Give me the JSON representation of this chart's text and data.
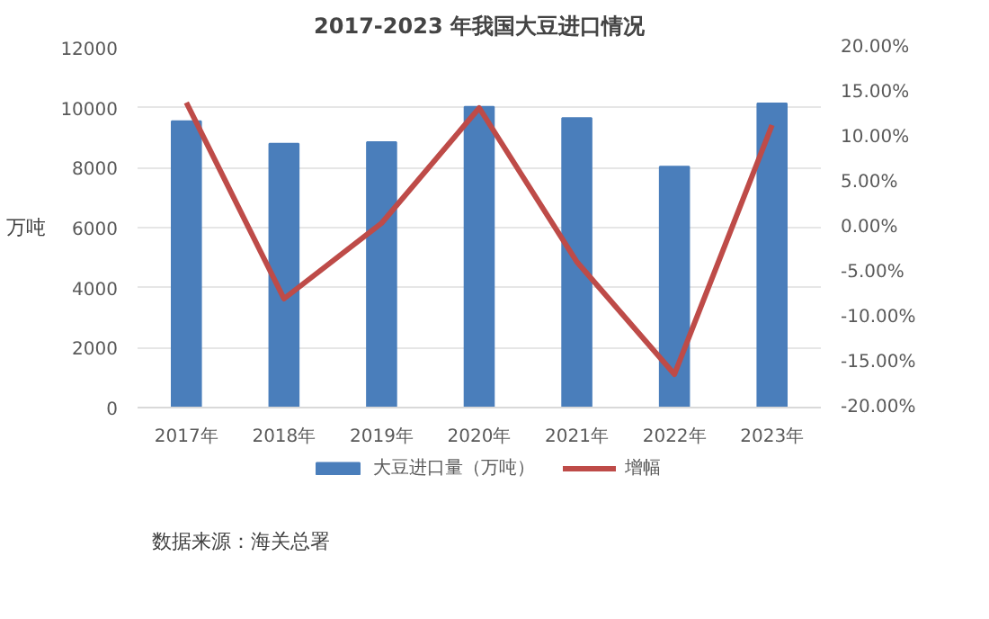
{
  "chart_data": {
    "type": "bar",
    "title": "2017-2023 年我国大豆进口情况",
    "ylabel": "万吨",
    "categories": [
      "2017年",
      "2018年",
      "2019年",
      "2020年",
      "2021年",
      "2022年",
      "2023年"
    ],
    "series": [
      {
        "name": "大豆进口量（万吨）",
        "color": "#4a7ebb",
        "values": [
          9550,
          8800,
          8850,
          10030,
          9650,
          8030,
          10140
        ]
      },
      {
        "name": "增幅",
        "type": "line",
        "axis": "y2",
        "color": "#be4b48",
        "values": [
          13.9,
          -7.9,
          0.5,
          13.3,
          -3.8,
          -16.3,
          11.4
        ]
      }
    ],
    "ylim": [
      0,
      12000
    ],
    "yticks": [
      0,
      2000,
      4000,
      6000,
      8000,
      10000,
      12000
    ],
    "y2lim": [
      -20,
      20
    ],
    "y2ticks": [
      {
        "value": -20,
        "label": "-20.00%"
      },
      {
        "value": -15,
        "label": "-15.00%"
      },
      {
        "value": -10,
        "label": "-10.00%"
      },
      {
        "value": -5,
        "label": "-5.00%"
      },
      {
        "value": 0,
        "label": "0.00%"
      },
      {
        "value": 5,
        "label": "5.00%"
      },
      {
        "value": 10,
        "label": "10.00%"
      },
      {
        "value": 15,
        "label": "15.00%"
      },
      {
        "value": 20,
        "label": "20.00%"
      }
    ],
    "grid": "y",
    "legend": "bottom",
    "marker": "none",
    "line_style": "solid",
    "annotations": [
      "数据来源：海关总署"
    ]
  }
}
